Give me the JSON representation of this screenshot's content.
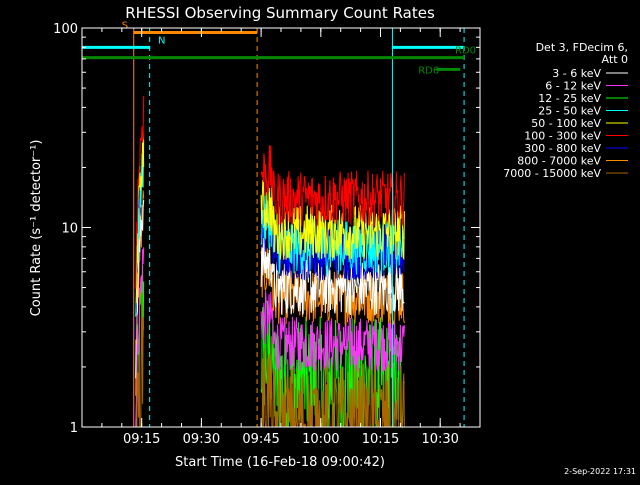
{
  "chart_data": {
    "type": "line",
    "title": "RHESSI Observing Summary Count Rates",
    "xlabel": "Start Time (16-Feb-18 09:00:42)",
    "ylabel": "Count Rate (s⁻¹ detector⁻¹)",
    "yscale": "log",
    "ylim": [
      1,
      100
    ],
    "xlim_minutes": [
      0,
      100
    ],
    "y_ticks": [
      {
        "value": 1,
        "label": "1"
      },
      {
        "value": 10,
        "label": "10"
      },
      {
        "value": 100,
        "label": "100"
      }
    ],
    "x_ticks": [
      {
        "minute": 15,
        "label": "09:15"
      },
      {
        "minute": 30,
        "label": "09:30"
      },
      {
        "minute": 45,
        "label": "09:45"
      },
      {
        "minute": 60,
        "label": "10:00"
      },
      {
        "minute": 75,
        "label": "10:15"
      },
      {
        "minute": 90,
        "label": "10:30"
      }
    ],
    "legend_header": [
      "Det 3, FDecim 6,",
      "Att 0"
    ],
    "series": [
      {
        "name": "3 - 6 keV",
        "color": "#ffffff",
        "level": 5.0
      },
      {
        "name": "6 - 12 keV",
        "color": "#ff33ff",
        "level": 2.6
      },
      {
        "name": "12 - 25 keV",
        "color": "#00ff00",
        "level": 1.7
      },
      {
        "name": "25 - 50 keV",
        "color": "#00ffff",
        "level": 8.0
      },
      {
        "name": "50 - 100 keV",
        "color": "#ffff00",
        "level": 9.5
      },
      {
        "name": "100 - 300 keV",
        "color": "#ff0000",
        "level": 14.0
      },
      {
        "name": "300 - 800 keV",
        "color": "#0000ff",
        "level": 7.5
      },
      {
        "name": "800 - 7000 keV",
        "color": "#ff8800",
        "level": 4.5
      },
      {
        "name": "7000 - 15000 keV",
        "color": "#aa6600",
        "level": 1.0
      }
    ],
    "flags": [
      {
        "label": "S",
        "color": "#ff8800",
        "y": 95,
        "start_min": 13,
        "end_min": 44
      },
      {
        "label": "N",
        "color": "#00ffff",
        "y": 80,
        "start_min": 0,
        "end_min": 17
      },
      {
        "label": "N",
        "color": "#00ffff",
        "y": 80,
        "start_min": 78,
        "end_min": 96
      },
      {
        "label": "RD0",
        "color": "#008800",
        "y": 71,
        "start_min": 0,
        "end_min": 96
      },
      {
        "label": "RD6",
        "color": "#008800",
        "y": 62,
        "start_min": 89,
        "end_min": 95
      }
    ],
    "markers": [
      {
        "minute": 13,
        "color": "#ff8800",
        "style": "solid"
      },
      {
        "minute": 17,
        "color": "#00ffff",
        "style": "dashed"
      },
      {
        "minute": 44,
        "color": "#ff8800",
        "style": "dashed"
      },
      {
        "minute": 78,
        "color": "#00ffff",
        "style": "solid"
      },
      {
        "minute": 96,
        "color": "#00ffff",
        "style": "dashed"
      }
    ],
    "segments": [
      {
        "start_min": 13.5,
        "end_min": 15.5
      },
      {
        "start_min": 45,
        "end_min": 81
      }
    ]
  },
  "footer": {
    "date": "2-Sep-2022 17:31"
  }
}
